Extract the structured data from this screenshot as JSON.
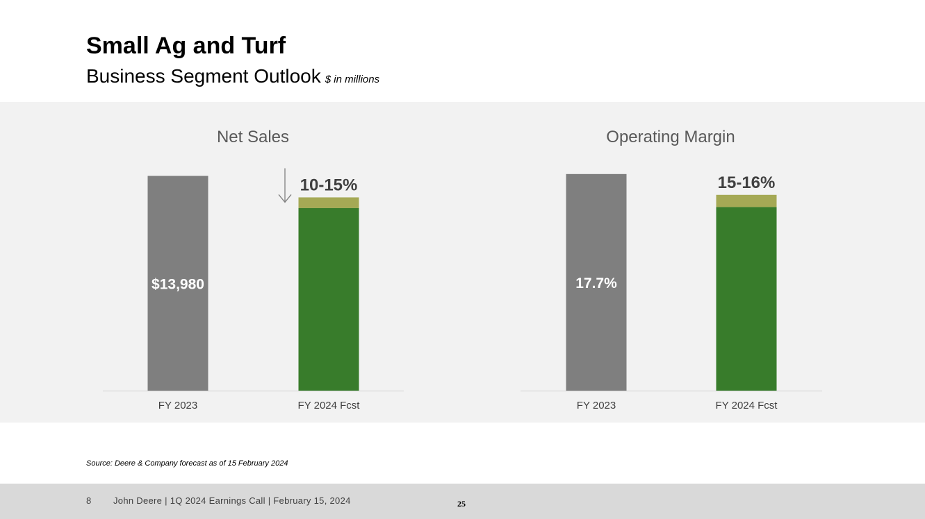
{
  "header": {
    "title": "Small Ag and Turf",
    "subtitle": "Business Segment Outlook",
    "units": "$ in millions"
  },
  "source": "Source: Deere & Company forecast as of 15 February 2024",
  "footer": {
    "page_number": "8",
    "text": "John Deere | 1Q 2024 Earnings Call | February 15, 2024",
    "slide_number": "25"
  },
  "colors": {
    "actual_bar": "#7f7f7f",
    "forecast_bar": "#387c2b",
    "forecast_range": "#a5a955",
    "panel_background": "#f2f2f2"
  },
  "chart_data": [
    {
      "type": "bar",
      "title": "Net Sales",
      "categories": [
        "FY 2023",
        "FY 2024 Fcst"
      ],
      "values": [
        13980,
        12582
      ],
      "range_top": [
        null,
        11883
      ],
      "value_labels": [
        "$13,980",
        ""
      ],
      "forecast_label": "10-15%",
      "direction": "down",
      "ylim": [
        0,
        14500
      ]
    },
    {
      "type": "bar",
      "title": "Operating Margin",
      "categories": [
        "FY 2023",
        "FY 2024 Fcst"
      ],
      "values": [
        17.7,
        16.0
      ],
      "range_top": [
        null,
        15.0
      ],
      "value_labels": [
        "17.7%",
        ""
      ],
      "forecast_label": "15-16%",
      "ylim": [
        0,
        18.2
      ]
    }
  ]
}
